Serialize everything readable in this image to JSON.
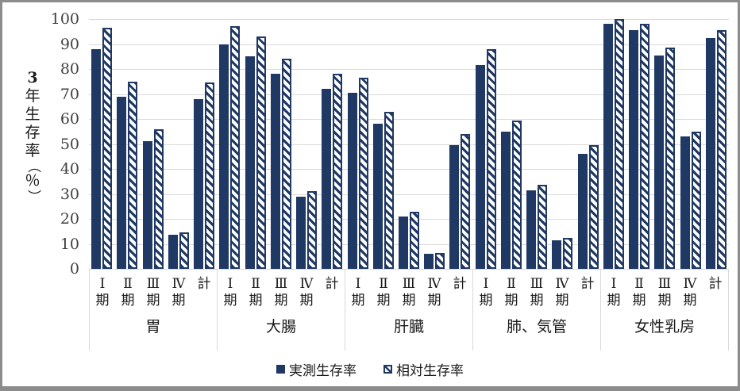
{
  "colors": {
    "bar_navy": "#1F3864",
    "gridline": "#D9D9D9",
    "frame_gray": "#8C8C8C",
    "tick_text": "#404040",
    "label_text": "#1a1a1a"
  },
  "y_axis": {
    "title": "3年生存率（％）",
    "title_chars": [
      {
        "ch": "3",
        "bold": true
      },
      {
        "ch": "年"
      },
      {
        "ch": "生"
      },
      {
        "ch": "存"
      },
      {
        "ch": "率"
      },
      {
        "ch": "（",
        "rotate": true
      },
      {
        "ch": "％"
      },
      {
        "ch": "）",
        "rotate": true
      }
    ],
    "ticks": [
      100,
      90,
      80,
      70,
      60,
      50,
      40,
      30,
      20,
      10,
      0
    ]
  },
  "legend": {
    "series": [
      {
        "label": "実測生存率",
        "style": "solid"
      },
      {
        "label": "相対生存率",
        "style": "hatched"
      }
    ]
  },
  "chart_data": {
    "type": "bar",
    "title": "",
    "ylabel": "3年生存率（％）",
    "ylim": [
      0,
      100
    ],
    "grid": true,
    "legend_position": "bottom",
    "stage_labels": [
      [
        "Ⅰ",
        "期"
      ],
      [
        "Ⅱ",
        "期"
      ],
      [
        "Ⅲ",
        "期"
      ],
      [
        "Ⅳ",
        "期"
      ],
      [
        "計",
        ""
      ]
    ],
    "series_names": [
      "実測生存率",
      "相対生存率"
    ],
    "groups": [
      {
        "name": "胃",
        "observed": [
          88,
          69,
          51,
          13.5,
          68
        ],
        "relative": [
          96.5,
          75,
          56,
          14.5,
          74.5
        ]
      },
      {
        "name": "大腸",
        "observed": [
          90,
          85,
          78,
          29,
          72
        ],
        "relative": [
          97,
          93,
          84,
          31,
          78
        ]
      },
      {
        "name": "肝臓",
        "observed": [
          70.5,
          58,
          21,
          6,
          49.5
        ],
        "relative": [
          76.5,
          63,
          23,
          6.5,
          54
        ]
      },
      {
        "name": "肺、気管",
        "observed": [
          81.5,
          55,
          31.5,
          11.5,
          46
        ],
        "relative": [
          88,
          59.5,
          33.5,
          12.5,
          49.5
        ]
      },
      {
        "name": "女性乳房",
        "observed": [
          98,
          95.5,
          85.5,
          53,
          92.5
        ],
        "relative": [
          100,
          98,
          88.5,
          55,
          95.5
        ]
      }
    ]
  }
}
